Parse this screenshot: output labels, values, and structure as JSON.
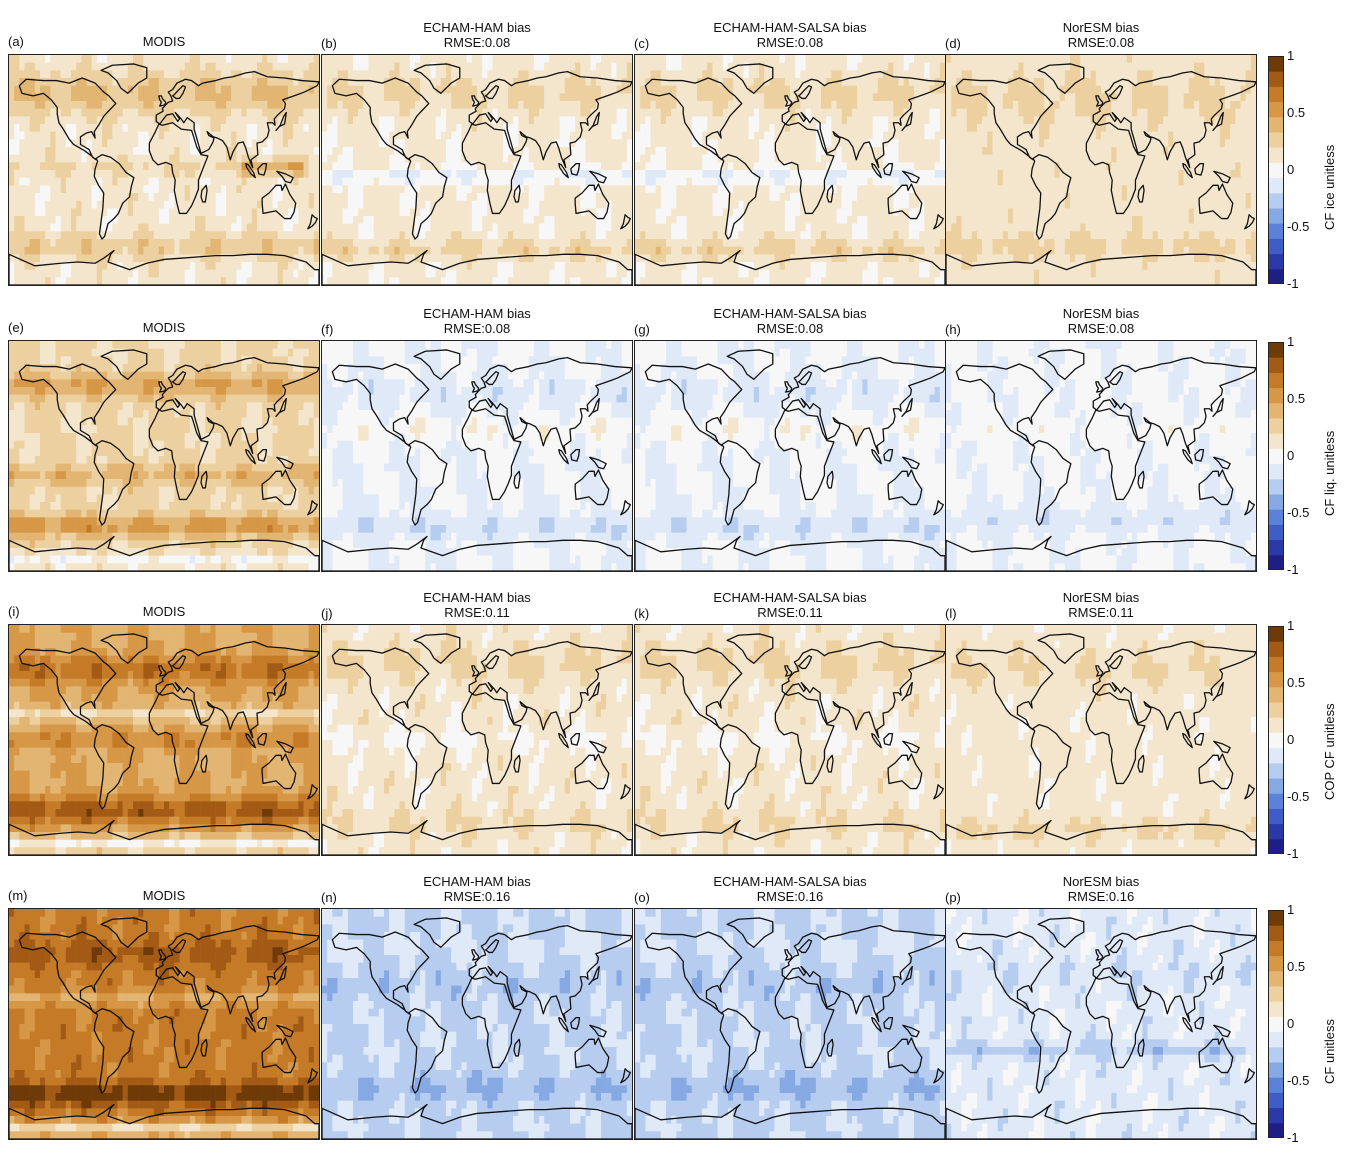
{
  "colormap": {
    "colors": [
      "#1f1e87",
      "#2b39a6",
      "#3f5cc4",
      "#5b82d8",
      "#86a9e4",
      "#b7cdf0",
      "#dfe9f7",
      "#f7f7f7",
      "#f4e6cc",
      "#ecd0a0",
      "#e2b573",
      "#d69747",
      "#c47a26",
      "#a35a14",
      "#6d3a08"
    ]
  },
  "rows": [
    {
      "colorbar": {
        "label": "CF ice unitless",
        "ticks": [
          "1",
          "0.5",
          "0",
          "-0.5",
          "-1"
        ]
      },
      "panels": [
        {
          "letter": "(a)",
          "title": "MODIS",
          "subtitle": "",
          "pattern": "obs1"
        },
        {
          "letter": "(b)",
          "title": "ECHAM-HAM bias",
          "subtitle": "RMSE:0.08",
          "pattern": "ice_bias"
        },
        {
          "letter": "(c)",
          "title": "ECHAM-HAM-SALSA bias",
          "subtitle": "RMSE:0.08",
          "pattern": "ice_bias"
        },
        {
          "letter": "(d)",
          "title": "NorESM bias",
          "subtitle": "RMSE:0.08",
          "pattern": "ice_bias_nor"
        }
      ]
    },
    {
      "colorbar": {
        "label": "CF liq. unitless",
        "ticks": [
          "1",
          "0.5",
          "0",
          "-0.5",
          "-1"
        ]
      },
      "panels": [
        {
          "letter": "(e)",
          "title": "MODIS",
          "subtitle": "",
          "pattern": "obs2"
        },
        {
          "letter": "(f)",
          "title": "ECHAM-HAM bias",
          "subtitle": "RMSE:0.08",
          "pattern": "liq_bias"
        },
        {
          "letter": "(g)",
          "title": "ECHAM-HAM-SALSA bias",
          "subtitle": "RMSE:0.08",
          "pattern": "liq_bias"
        },
        {
          "letter": "(h)",
          "title": "NorESM bias",
          "subtitle": "RMSE:0.08",
          "pattern": "liq_bias_nor"
        }
      ]
    },
    {
      "colorbar": {
        "label": "COP CF unitless",
        "ticks": [
          "1",
          "0.5",
          "0",
          "-0.5",
          "-1"
        ]
      },
      "panels": [
        {
          "letter": "(i)",
          "title": "MODIS",
          "subtitle": "",
          "pattern": "obs3"
        },
        {
          "letter": "(j)",
          "title": "ECHAM-HAM bias",
          "subtitle": "RMSE:0.11",
          "pattern": "cop_bias"
        },
        {
          "letter": "(k)",
          "title": "ECHAM-HAM-SALSA bias",
          "subtitle": "RMSE:0.11",
          "pattern": "cop_bias"
        },
        {
          "letter": "(l)",
          "title": "NorESM bias",
          "subtitle": "RMSE:0.11",
          "pattern": "cop_bias_nor"
        }
      ]
    },
    {
      "colorbar": {
        "label": "CF unitless",
        "ticks": [
          "1",
          "0.5",
          "0",
          "-0.5",
          "-1"
        ]
      },
      "panels": [
        {
          "letter": "(m)",
          "title": "MODIS",
          "subtitle": "",
          "pattern": "obs4"
        },
        {
          "letter": "(n)",
          "title": "ECHAM-HAM bias",
          "subtitle": "RMSE:0.16",
          "pattern": "cf_bias"
        },
        {
          "letter": "(o)",
          "title": "ECHAM-HAM-SALSA bias",
          "subtitle": "RMSE:0.16",
          "pattern": "cf_bias"
        },
        {
          "letter": "(p)",
          "title": "NorESM bias",
          "subtitle": "RMSE:0.16",
          "pattern": "cf_bias_nor"
        }
      ]
    }
  ]
}
